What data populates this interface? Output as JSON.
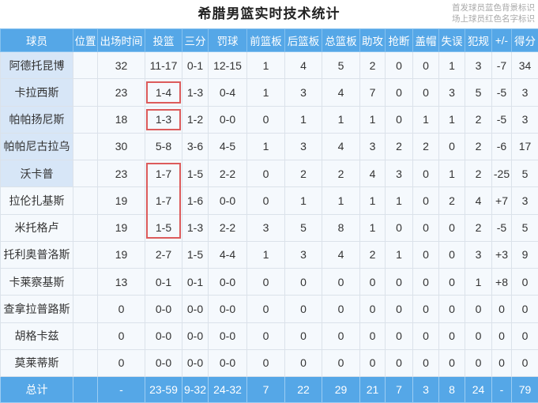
{
  "page": {
    "legend": [
      "首发球员蓝色背景标识",
      "场上球员红色名字标识"
    ]
  },
  "colors": {
    "header_blue": "#55a7e7",
    "starter_name_bg": "#d7e6f7",
    "row_bg": "#f5f9fd",
    "grid_border": "#dbe2ea",
    "highlight_red": "#dc5b5b",
    "legend_gray": "#a8a8a8",
    "text_dark": "#333333"
  },
  "chart_data": {
    "type": "table",
    "title": "希腊男篮实时技术统计",
    "columns": [
      "球员",
      "位置",
      "出场时间",
      "投篮",
      "三分",
      "罚球",
      "前篮板",
      "后篮板",
      "总篮板",
      "助攻",
      "抢断",
      "盖帽",
      "失误",
      "犯规",
      "+/-",
      "得分"
    ],
    "rows": [
      {
        "name": "阿德托昆博",
        "starter": true,
        "fg_red_box": null,
        "cells": [
          "",
          "32",
          "11-17",
          "0-1",
          "12-15",
          "1",
          "4",
          "5",
          "2",
          "0",
          "0",
          "1",
          "3",
          "-7",
          "34"
        ]
      },
      {
        "name": "卡拉西斯",
        "starter": true,
        "fg_red_box": "single",
        "cells": [
          "",
          "23",
          "1-4",
          "1-3",
          "0-4",
          "1",
          "3",
          "4",
          "7",
          "0",
          "0",
          "3",
          "5",
          "-5",
          "3"
        ]
      },
      {
        "name": "帕帕扬尼斯",
        "starter": true,
        "fg_red_box": "single",
        "cells": [
          "",
          "18",
          "1-3",
          "1-2",
          "0-0",
          "0",
          "1",
          "1",
          "1",
          "0",
          "1",
          "1",
          "2",
          "-5",
          "3"
        ]
      },
      {
        "name": "帕帕尼古拉乌",
        "starter": true,
        "fg_red_box": null,
        "cells": [
          "",
          "30",
          "5-8",
          "3-6",
          "4-5",
          "1",
          "3",
          "4",
          "3",
          "2",
          "2",
          "0",
          "2",
          "-6",
          "17"
        ]
      },
      {
        "name": "沃卡普",
        "starter": true,
        "fg_red_box": "tall3",
        "cells": [
          "",
          "23",
          "1-7",
          "1-5",
          "2-2",
          "0",
          "2",
          "2",
          "4",
          "3",
          "0",
          "1",
          "2",
          "-25",
          "5"
        ]
      },
      {
        "name": "拉伦扎基斯",
        "starter": false,
        "fg_red_box": null,
        "cells": [
          "",
          "19",
          "1-7",
          "1-6",
          "0-0",
          "0",
          "1",
          "1",
          "1",
          "1",
          "0",
          "2",
          "4",
          "+7",
          "3"
        ]
      },
      {
        "name": "米托格卢",
        "starter": false,
        "fg_red_box": null,
        "cells": [
          "",
          "19",
          "1-5",
          "1-3",
          "2-2",
          "3",
          "5",
          "8",
          "1",
          "0",
          "0",
          "0",
          "2",
          "-5",
          "5"
        ]
      },
      {
        "name": "托利奥普洛斯",
        "starter": false,
        "fg_red_box": null,
        "cells": [
          "",
          "19",
          "2-7",
          "1-5",
          "4-4",
          "1",
          "3",
          "4",
          "2",
          "1",
          "0",
          "0",
          "3",
          "+3",
          "9"
        ]
      },
      {
        "name": "卡莱察基斯",
        "starter": false,
        "fg_red_box": null,
        "cells": [
          "",
          "13",
          "0-1",
          "0-1",
          "0-0",
          "0",
          "0",
          "0",
          "0",
          "0",
          "0",
          "0",
          "1",
          "+8",
          "0"
        ]
      },
      {
        "name": "查拿拉普路斯",
        "starter": false,
        "fg_red_box": null,
        "cells": [
          "",
          "0",
          "0-0",
          "0-0",
          "0-0",
          "0",
          "0",
          "0",
          "0",
          "0",
          "0",
          "0",
          "0",
          "0",
          "0"
        ]
      },
      {
        "name": "胡格卡兹",
        "starter": false,
        "fg_red_box": null,
        "cells": [
          "",
          "0",
          "0-0",
          "0-0",
          "0-0",
          "0",
          "0",
          "0",
          "0",
          "0",
          "0",
          "0",
          "0",
          "0",
          "0"
        ]
      },
      {
        "name": "莫莱蒂斯",
        "starter": false,
        "fg_red_box": null,
        "cells": [
          "",
          "0",
          "0-0",
          "0-0",
          "0-0",
          "0",
          "0",
          "0",
          "0",
          "0",
          "0",
          "0",
          "0",
          "0",
          "0"
        ]
      }
    ],
    "total": {
      "label": "总计",
      "cells": [
        "",
        "-",
        "23-59",
        "9-32",
        "24-32",
        "7",
        "22",
        "29",
        "21",
        "7",
        "3",
        "8",
        "24",
        "-",
        "79"
      ]
    }
  }
}
